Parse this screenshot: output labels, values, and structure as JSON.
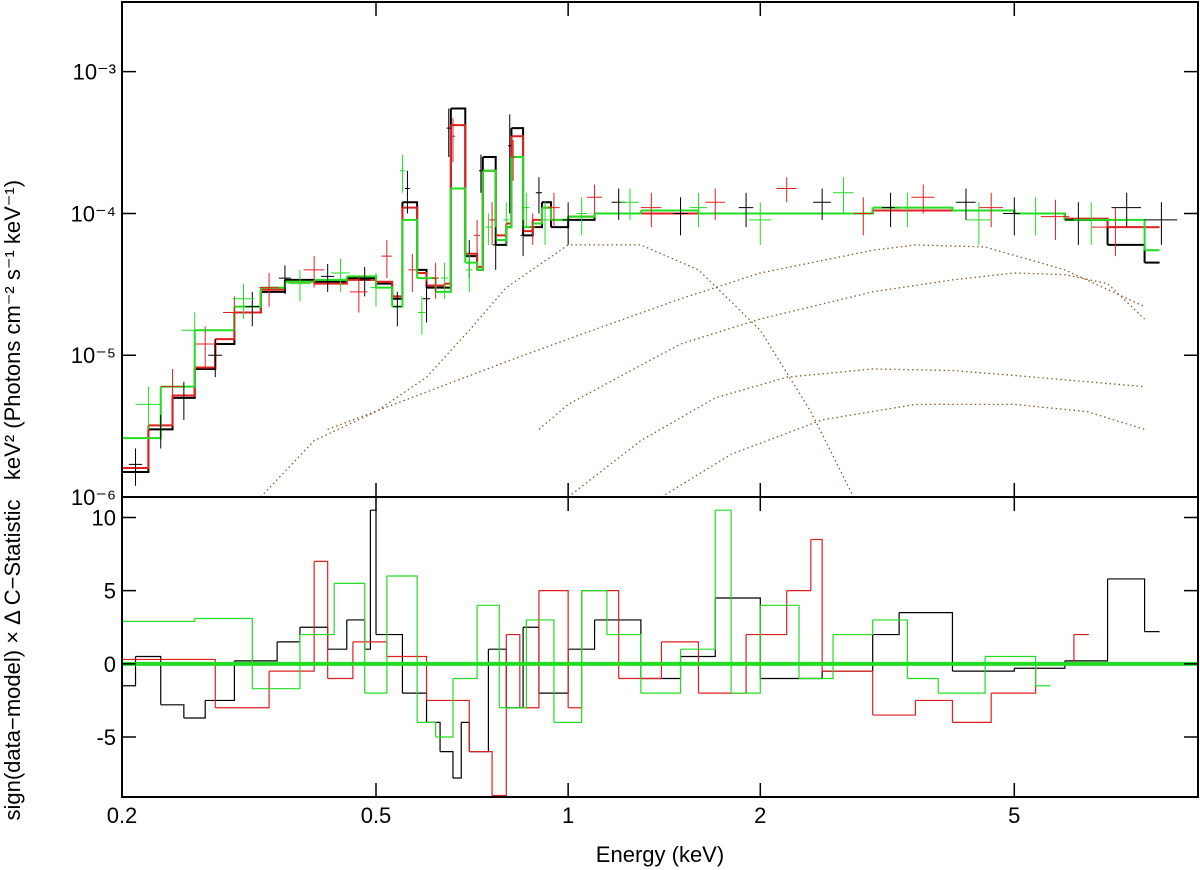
{
  "chart_data": [
    {
      "type": "spectrum",
      "ylabel": "keV² (Photons cm⁻² s⁻¹ keV⁻¹)",
      "xlog": true,
      "ylog": true,
      "xlim": [
        0.2,
        9.7
      ],
      "ylim": [
        1e-06,
        0.0031
      ],
      "yticks": [
        {
          "value": 1e-06,
          "label": "10⁻⁶"
        },
        {
          "value": 1e-05,
          "label": "10⁻⁵"
        },
        {
          "value": 0.0001,
          "label": "10⁻⁴"
        },
        {
          "value": 0.001,
          "label": "10⁻³"
        }
      ],
      "series": [
        {
          "kind": "model",
          "color": "#000000",
          "x": [
            0.2,
            0.22,
            0.24,
            0.26,
            0.28,
            0.3,
            0.33,
            0.36,
            0.4,
            0.45,
            0.5,
            0.53,
            0.55,
            0.58,
            0.6,
            0.64,
            0.655,
            0.69,
            0.72,
            0.735,
            0.77,
            0.8,
            0.815,
            0.85,
            0.88,
            0.91,
            0.94,
            1.0,
            1.1,
            1.3,
            1.6,
            2.0,
            3.0,
            4.0,
            5.0,
            6.0,
            7.0,
            8.0
          ],
          "values": [
            1.5e-06,
            3e-06,
            5e-06,
            8e-06,
            1.2e-05,
            2e-05,
            2.8e-05,
            3.4e-05,
            3.3e-05,
            3.5e-05,
            3.2e-05,
            2.5e-05,
            0.00012,
            4e-05,
            3e-05,
            3e-05,
            0.00055,
            5e-05,
            4e-05,
            0.00025,
            6e-05,
            8e-05,
            0.0004,
            7e-05,
            8e-05,
            0.00012,
            8e-05,
            9e-05,
            0.0001,
            0.0001,
            0.0001,
            0.0001,
            0.000105,
            0.000105,
            0.0001,
            9e-05,
            6e-05,
            4.5e-05
          ]
        },
        {
          "kind": "model",
          "color": "#e02020",
          "x": [
            0.2,
            0.22,
            0.24,
            0.26,
            0.28,
            0.3,
            0.33,
            0.36,
            0.4,
            0.45,
            0.5,
            0.53,
            0.55,
            0.58,
            0.6,
            0.64,
            0.655,
            0.69,
            0.72,
            0.735,
            0.77,
            0.8,
            0.815,
            0.85,
            0.88,
            0.91,
            0.94,
            1.0,
            1.1,
            1.3,
            1.6,
            2.0,
            3.0,
            4.0,
            5.0,
            6.0,
            7.0,
            8.0
          ],
          "values": [
            1.6e-06,
            3.2e-06,
            5.2e-06,
            8.2e-06,
            1.3e-05,
            2e-05,
            2.9e-05,
            3.3e-05,
            3.2e-05,
            3.4e-05,
            3.3e-05,
            2.6e-05,
            0.00011,
            3.8e-05,
            3.1e-05,
            3.2e-05,
            0.00042,
            5.2e-05,
            4.2e-05,
            0.0002,
            7e-05,
            8.5e-05,
            0.00035,
            7.5e-05,
            9e-05,
            0.00011,
            9e-05,
            9.5e-05,
            0.0001,
            0.0001,
            0.0001,
            0.0001,
            0.000105,
            0.000105,
            0.0001,
            9.2e-05,
            8e-05,
            8e-05
          ]
        },
        {
          "kind": "model",
          "color": "#22dd22",
          "x": [
            0.2,
            0.23,
            0.26,
            0.3,
            0.33,
            0.36,
            0.4,
            0.45,
            0.5,
            0.53,
            0.55,
            0.58,
            0.62,
            0.655,
            0.69,
            0.72,
            0.735,
            0.77,
            0.8,
            0.815,
            0.85,
            0.88,
            0.91,
            0.94,
            1.0,
            1.1,
            1.3,
            1.6,
            2.0,
            3.0,
            4.0,
            5.0,
            6.0,
            8.0
          ],
          "values": [
            2.6e-06,
            6e-06,
            1.5e-05,
            2.2e-05,
            3e-05,
            3.3e-05,
            3.4e-05,
            3.6e-05,
            3e-05,
            2.2e-05,
            9e-05,
            3.5e-05,
            2.8e-05,
            0.00015,
            4.5e-05,
            4e-05,
            0.0002,
            6.5e-05,
            8e-05,
            0.00025,
            8e-05,
            8.5e-05,
            0.00011,
            9e-05,
            9.5e-05,
            0.0001,
            0.000105,
            0.0001,
            0.0001,
            0.00011,
            0.000105,
            0.0001,
            9e-05,
            5.5e-05
          ]
        },
        {
          "kind": "data",
          "color": "#000000",
          "x": [
            0.21,
            0.23,
            0.25,
            0.28,
            0.32,
            0.36,
            0.42,
            0.48,
            0.54,
            0.56,
            0.6,
            0.65,
            0.7,
            0.73,
            0.77,
            0.81,
            0.85,
            0.9,
            1.0,
            1.2,
            1.5,
            1.9,
            2.5,
            3.2,
            4.2,
            5.0,
            6.3,
            7.5,
            8.5
          ],
          "values": [
            1.7e-06,
            3e-06,
            5e-06,
            1e-05,
            2.2e-05,
            3.5e-05,
            3.6e-05,
            3.4e-05,
            2.2e-05,
            0.00015,
            2.5e-05,
            0.0004,
            5e-05,
            0.0002,
            6e-05,
            0.0003,
            7e-05,
            0.00014,
            9e-05,
            0.00012,
            0.0001,
            0.00011,
            0.00012,
            0.00011,
            0.00012,
            0.0001,
            9e-05,
            0.00011,
            9e-05
          ],
          "yerr": [
            5e-07,
            8e-07,
            1.5e-06,
            3e-06,
            6e-06,
            8e-06,
            8e-06,
            8e-06,
            6e-06,
            5e-05,
            8e-06,
            0.00015,
            1.5e-05,
            6e-05,
            2e-05,
            0.0002,
            2e-05,
            4e-05,
            3e-05,
            3e-05,
            3e-05,
            3e-05,
            3e-05,
            3e-05,
            3e-05,
            3e-05,
            3e-05,
            3e-05,
            3e-05
          ],
          "xerr": [
            0.005,
            0.005,
            0.006,
            0.007,
            0.008,
            0.008,
            0.01,
            0.01,
            0.008,
            0.005,
            0.008,
            0.005,
            0.008,
            0.005,
            0.008,
            0.005,
            0.008,
            0.01,
            0.02,
            0.03,
            0.04,
            0.05,
            0.08,
            0.1,
            0.15,
            0.2,
            0.3,
            0.4,
            0.5
          ]
        },
        {
          "kind": "data",
          "color": "#e02020",
          "x": [
            0.24,
            0.27,
            0.3,
            0.34,
            0.4,
            0.47,
            0.52,
            0.57,
            0.62,
            0.66,
            0.72,
            0.76,
            0.82,
            0.88,
            0.95,
            1.1,
            1.35,
            1.7,
            2.2,
            2.9,
            3.6,
            4.6,
            5.8,
            7.2
          ],
          "values": [
            6e-06,
            1.2e-05,
            2e-05,
            3e-05,
            4e-05,
            2.8e-05,
            5e-05,
            4e-05,
            3.5e-05,
            0.00035,
            7e-05,
            9e-05,
            0.00025,
            8e-05,
            0.00011,
            0.00013,
            0.00011,
            0.00012,
            0.00015,
            0.0001,
            0.00013,
            0.00011,
            9.5e-05,
            8e-05
          ],
          "yerr": [
            2e-06,
            4e-06,
            6e-06,
            8e-06,
            1e-05,
            8e-06,
            1.5e-05,
            1.2e-05,
            1e-05,
            0.00012,
            2e-05,
            3e-05,
            8e-05,
            2e-05,
            3e-05,
            3e-05,
            3e-05,
            3e-05,
            3e-05,
            3e-05,
            3e-05,
            3e-05,
            3e-05,
            3e-05
          ],
          "xerr": [
            0.01,
            0.01,
            0.012,
            0.012,
            0.015,
            0.015,
            0.01,
            0.008,
            0.008,
            0.005,
            0.008,
            0.008,
            0.005,
            0.01,
            0.02,
            0.03,
            0.05,
            0.06,
            0.08,
            0.1,
            0.15,
            0.2,
            0.3,
            0.6
          ]
        },
        {
          "kind": "data",
          "color": "#22dd22",
          "x": [
            0.22,
            0.26,
            0.31,
            0.38,
            0.44,
            0.5,
            0.55,
            0.59,
            0.64,
            0.7,
            0.75,
            0.8,
            0.86,
            0.92,
            1.05,
            1.25,
            1.6,
            2.0,
            2.7,
            3.4,
            4.4,
            5.4,
            6.6
          ],
          "values": [
            4.5e-06,
            1.5e-05,
            2.5e-05,
            3.2e-05,
            3.8e-05,
            3e-05,
            0.0002,
            2e-05,
            3.5e-05,
            4e-05,
            8e-05,
            9e-05,
            0.00011,
            9e-05,
            0.0001,
            0.00012,
            0.00011,
            9e-05,
            0.00014,
            0.00011,
            9e-05,
            0.0001,
            9e-05
          ],
          "yerr": [
            1.5e-06,
            5e-06,
            7e-06,
            8e-06,
            1e-05,
            8e-06,
            6e-05,
            6e-06,
            1e-05,
            1.2e-05,
            2e-05,
            3e-05,
            3e-05,
            3e-05,
            3e-05,
            3e-05,
            3e-05,
            3e-05,
            4e-05,
            3e-05,
            3e-05,
            3e-05,
            3e-05
          ],
          "xerr": [
            0.01,
            0.012,
            0.012,
            0.015,
            0.015,
            0.01,
            0.005,
            0.008,
            0.008,
            0.008,
            0.008,
            0.008,
            0.01,
            0.015,
            0.02,
            0.04,
            0.05,
            0.08,
            0.1,
            0.15,
            0.2,
            0.3,
            0.4
          ]
        },
        {
          "kind": "component",
          "color": "#8a5a2a",
          "x": [
            0.33,
            0.4,
            0.5,
            0.6,
            0.7,
            0.8,
            1.0,
            1.3,
            1.6,
            2.0,
            2.4,
            2.8
          ],
          "values": [
            1e-06,
            2.5e-06,
            4e-06,
            7e-06,
            1.5e-05,
            3e-05,
            6e-05,
            6e-05,
            4e-05,
            1.5e-05,
            4e-06,
            1e-06
          ]
        },
        {
          "kind": "component",
          "color": "#8a5a2a",
          "x": [
            0.42,
            0.6,
            0.8,
            1.0,
            1.5,
            2.0,
            3.0,
            3.5,
            4.5,
            6.0,
            8.0
          ],
          "values": [
            3e-06,
            5.5e-06,
            9e-06,
            1.3e-05,
            2.5e-05,
            3.8e-05,
            5.5e-05,
            6e-05,
            5.8e-05,
            4e-05,
            2.2e-05
          ]
        },
        {
          "kind": "component",
          "color": "#8a5a2a",
          "x": [
            0.9,
            1.0,
            1.5,
            2.0,
            3.0,
            4.0,
            5.0,
            6.0,
            7.0,
            8.0
          ],
          "values": [
            3e-06,
            4.5e-06,
            1.2e-05,
            1.8e-05,
            2.8e-05,
            3.4e-05,
            3.8e-05,
            3.7e-05,
            3.2e-05,
            1.8e-05
          ]
        },
        {
          "kind": "component",
          "color": "#8a5a2a",
          "x": [
            1.0,
            1.3,
            1.7,
            2.2,
            3.0,
            4.0,
            5.0,
            6.5,
            8.0
          ],
          "values": [
            1e-06,
            2.5e-06,
            5e-06,
            7e-06,
            8e-06,
            7.8e-06,
            7.2e-06,
            6.5e-06,
            6e-06
          ]
        },
        {
          "kind": "component",
          "color": "#8a5a2a",
          "x": [
            1.4,
            1.8,
            2.5,
            3.5,
            5.0,
            6.5,
            8.0
          ],
          "values": [
            1e-06,
            2e-06,
            3.5e-06,
            4.5e-06,
            4.5e-06,
            4e-06,
            3e-06
          ]
        }
      ]
    },
    {
      "type": "residual",
      "ylabel": "sign(data−model) × Δ C−Statistic",
      "xlabel": "Energy (keV)",
      "xlog": true,
      "xlim": [
        0.2,
        9.7
      ],
      "ylim": [
        -9.1,
        11.4
      ],
      "xticks": [
        0.2,
        0.5,
        1,
        2,
        5
      ],
      "yticks": [
        -5,
        0,
        5,
        10
      ],
      "series": [
        {
          "kind": "step",
          "color": "#000000",
          "x": [
            0.2,
            0.21,
            0.23,
            0.25,
            0.27,
            0.3,
            0.35,
            0.38,
            0.42,
            0.45,
            0.48,
            0.49,
            0.5,
            0.55,
            0.6,
            0.63,
            0.66,
            0.68,
            0.7,
            0.75,
            0.8,
            0.85,
            0.9,
            1.0,
            1.1,
            1.3,
            1.5,
            1.7,
            2.0,
            2.5,
            3.0,
            3.3,
            4.0,
            5.0,
            6.0,
            7.0,
            8.0
          ],
          "values": [
            -1.5,
            0.5,
            -2.8,
            -3.7,
            -2.5,
            0.2,
            1.5,
            2.5,
            1,
            3,
            1,
            10.5,
            2,
            -2,
            -4,
            -6,
            -7.8,
            -4,
            -6,
            1,
            -3,
            2.5,
            -2,
            1,
            3,
            -1,
            0.5,
            4.5,
            -1,
            -0.5,
            2,
            3.5,
            -0.5,
            -0.3,
            0.2,
            5.8,
            2.2
          ]
        },
        {
          "kind": "step",
          "color": "#e02020",
          "x": [
            0.2,
            0.28,
            0.34,
            0.4,
            0.42,
            0.46,
            0.52,
            0.6,
            0.7,
            0.76,
            0.8,
            0.84,
            0.9,
            1.0,
            1.05,
            1.2,
            1.4,
            1.6,
            1.9,
            2.2,
            2.4,
            2.5,
            3.0,
            3.5,
            4.0,
            4.6,
            5.4,
            6.2
          ],
          "values": [
            0.3,
            -3,
            -0.5,
            7,
            -1,
            1.5,
            0.5,
            -2.5,
            -6,
            -9,
            2,
            -3,
            5,
            -3,
            5,
            -1,
            1.5,
            -2,
            2,
            5,
            8.5,
            -0.5,
            -3.5,
            -2.5,
            -4,
            -2,
            0,
            2
          ]
        },
        {
          "kind": "step",
          "color": "#22dd22",
          "x": [
            0.2,
            0.26,
            0.32,
            0.38,
            0.43,
            0.48,
            0.52,
            0.58,
            0.62,
            0.66,
            0.72,
            0.78,
            0.86,
            0.95,
            1.05,
            1.15,
            1.3,
            1.5,
            1.7,
            1.8,
            2.0,
            2.3,
            2.6,
            3.0,
            3.4,
            3.8,
            4.5,
            5.4
          ],
          "values": [
            2.9,
            3.1,
            -1.7,
            2,
            5.5,
            -2,
            6,
            -4,
            -5,
            -1,
            4,
            -3,
            3,
            -4,
            5,
            2,
            -2,
            1,
            10.5,
            -2,
            4,
            -1,
            2,
            3,
            -1,
            -2,
            0.5,
            -1.5
          ]
        },
        {
          "kind": "zero",
          "color": "#22dd22",
          "x": [
            0.2,
            9.7
          ],
          "values": [
            0,
            0
          ]
        }
      ]
    }
  ]
}
